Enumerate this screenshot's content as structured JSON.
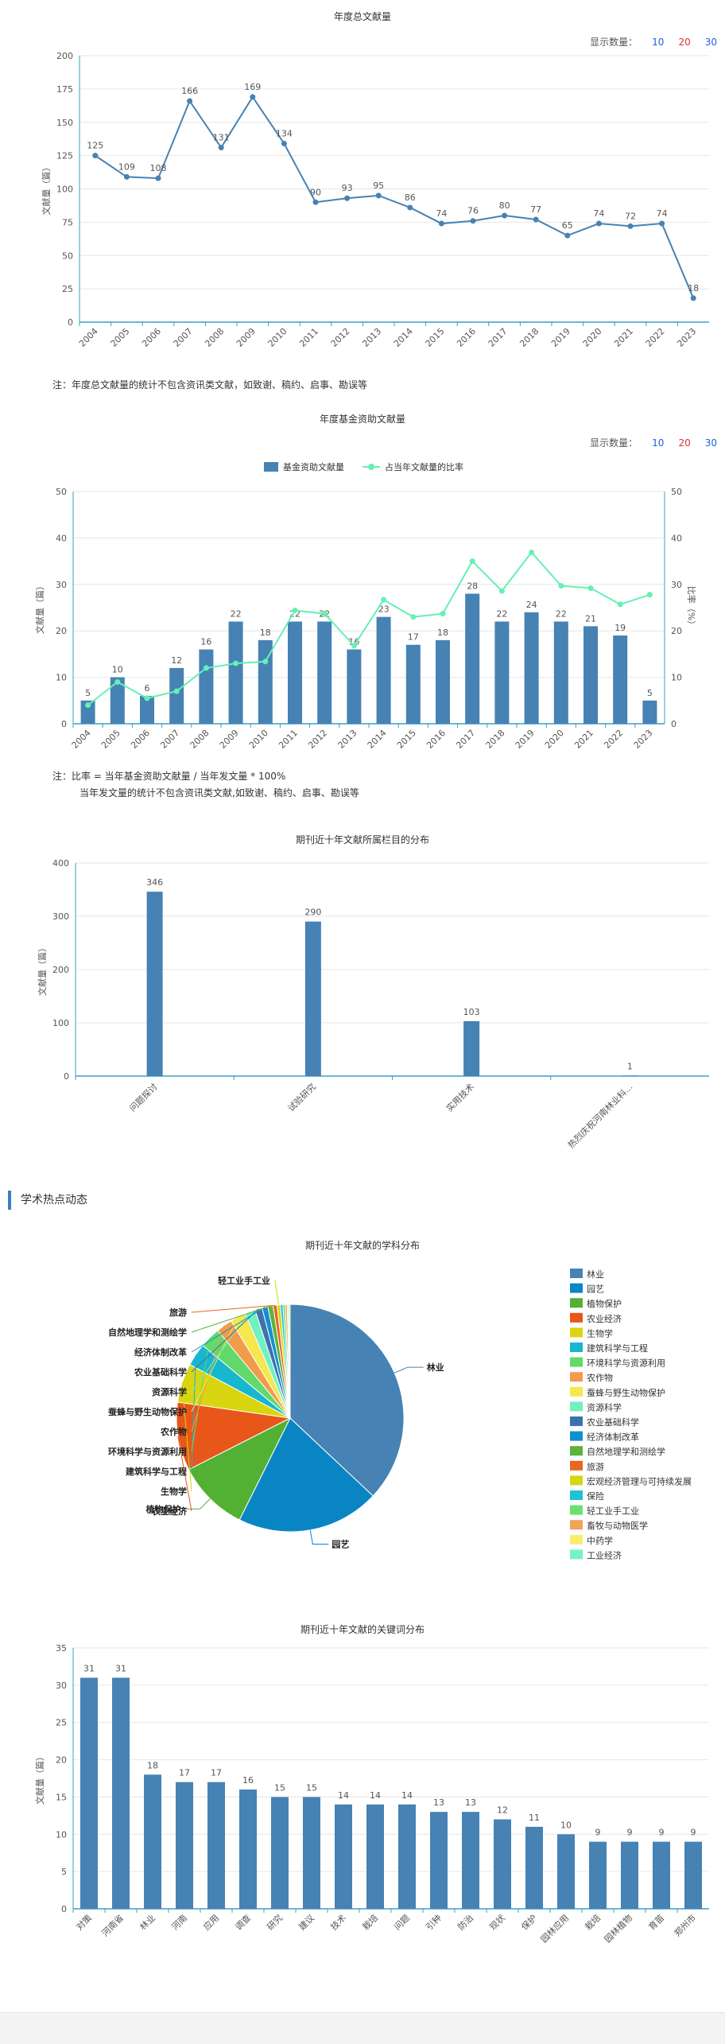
{
  "colors": {
    "bar": "#4682b4",
    "line": "#4682b4",
    "ratio": "#66f0b4",
    "blue_link": "#1f5fd6",
    "red_link": "#e03030"
  },
  "count_ctrl": {
    "label": "显示数量：",
    "opts": [
      "10",
      "20",
      "30"
    ]
  },
  "note1": "注：年度总文献量的统计不包含资讯类文献，如致谢、稿约、启事、勘误等",
  "note2a": "注：比率 = 当年基金资助文献量 / 当年发文量 * 100%",
  "note2b": "当年发文量的统计不包含资讯类文献,如致谢、稿约、启事、勘误等",
  "section": "学术热点动态",
  "chart_data": [
    {
      "type": "line",
      "title": "年度总文献量",
      "ylabel": "文献量（篇）",
      "ylim": [
        0,
        200
      ],
      "yticks": [
        0,
        25,
        50,
        75,
        100,
        125,
        150,
        175,
        200
      ],
      "categories": [
        "2004",
        "2005",
        "2006",
        "2007",
        "2008",
        "2009",
        "2010",
        "2011",
        "2012",
        "2013",
        "2014",
        "2015",
        "2016",
        "2017",
        "2018",
        "2019",
        "2020",
        "2021",
        "2022",
        "2023"
      ],
      "values": [
        125,
        109,
        108,
        166,
        131,
        169,
        134,
        90,
        93,
        95,
        86,
        74,
        76,
        80,
        77,
        65,
        74,
        72,
        74,
        18
      ]
    },
    {
      "type": "bar",
      "title": "年度基金资助文献量",
      "ylabel": "文献量（篇）",
      "y2label": "比率（%）",
      "ylim": [
        0,
        50
      ],
      "yticks": [
        0,
        10,
        20,
        30,
        40,
        50
      ],
      "categories": [
        "2004",
        "2005",
        "2006",
        "2007",
        "2008",
        "2009",
        "2010",
        "2011",
        "2012",
        "2013",
        "2014",
        "2015",
        "2016",
        "2017",
        "2018",
        "2019",
        "2020",
        "2021",
        "2022",
        "2023"
      ],
      "series": [
        {
          "name": "基金资助文献量",
          "values": [
            5,
            10,
            6,
            12,
            16,
            22,
            18,
            22,
            22,
            16,
            23,
            17,
            18,
            28,
            22,
            24,
            22,
            21,
            19,
            5
          ]
        },
        {
          "name": "占当年文献量的比率",
          "values": [
            4,
            9,
            5.5,
            7,
            12,
            13,
            13.4,
            24.4,
            23.7,
            16.8,
            26.7,
            23,
            23.7,
            35,
            28.6,
            36.9,
            29.7,
            29.2,
            25.7,
            27.8
          ]
        }
      ]
    },
    {
      "type": "bar",
      "title": "期刊近十年文献所属栏目的分布",
      "ylabel": "文献量（篇）",
      "ylim": [
        0,
        400
      ],
      "yticks": [
        0,
        100,
        200,
        300,
        400
      ],
      "categories": [
        "问题探讨",
        "试验研究",
        "实用技术",
        "热烈庆祝河南林业科..."
      ],
      "values": [
        346,
        290,
        103,
        1
      ]
    },
    {
      "type": "pie",
      "title": "期刊近十年文献的学科分布",
      "categories": [
        "林业",
        "园艺",
        "植物保护",
        "农业经济",
        "生物学",
        "建筑科学与工程",
        "环境科学与资源利用",
        "农作物",
        "蚕蜂与野生动物保护",
        "资源科学",
        "农业基础科学",
        "经济体制改革",
        "自然地理学和测绘学",
        "旅游",
        "宏观经济管理与可持续发展",
        "保险",
        "轻工业手工业",
        "畜牧与动物医学",
        "中药学",
        "工业经济"
      ],
      "values": [
        40,
        22,
        11,
        10.5,
        6,
        3.5,
        3.2,
        2.5,
        2.4,
        1.6,
        1.1,
        0.9,
        0.8,
        0.6,
        0.5,
        0.4,
        0.35,
        0.3,
        0.25,
        0.2
      ],
      "colors": [
        "#4682b4",
        "#0a85c4",
        "#52b033",
        "#e8561a",
        "#d9d511",
        "#16b7cf",
        "#62d96b",
        "#f29b4a",
        "#f5e74d",
        "#71f0c2",
        "#3d72ad",
        "#1290cf",
        "#5db33b",
        "#e8661f",
        "#d6d611",
        "#1fc1d6",
        "#6be072",
        "#f0a35a",
        "#f8ee6e",
        "#78f0cb"
      ],
      "labels": {
        "main": [
          "林业",
          "园艺",
          "植物保护",
          "农业经济",
          "生物学",
          "建筑科学与工程",
          "环境科学与资源利用",
          "农作物",
          "蚕蜂与野生动物保护",
          "资源科学",
          "农业基础科学",
          "经济体制改革",
          "自然地理学和测绘学",
          "旅游",
          "轻工业手工业"
        ]
      }
    },
    {
      "type": "bar",
      "title": "期刊近十年文献的关键词分布",
      "ylabel": "文献量（篇）",
      "ylim": [
        0,
        35
      ],
      "yticks": [
        0,
        5,
        10,
        15,
        20,
        25,
        30,
        35
      ],
      "categories": [
        "对策",
        "河南省",
        "林业",
        "河南",
        "应用",
        "调查",
        "研究",
        "建议",
        "技术",
        "栽培",
        "问题",
        "引种",
        "防治",
        "现状",
        "保护",
        "园林应用",
        "栽培",
        "园林植物",
        "育苗",
        "郑州市"
      ],
      "values": [
        31,
        31,
        18,
        17,
        17,
        16,
        15,
        15,
        14,
        14,
        14,
        13,
        13,
        12,
        11,
        10,
        9,
        9,
        9,
        9
      ]
    }
  ]
}
